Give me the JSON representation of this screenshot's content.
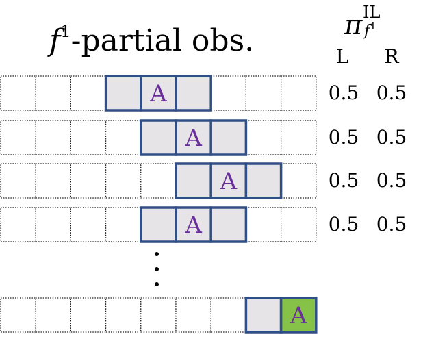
{
  "title": {
    "prefix": "f",
    "superscript": "1",
    "suffix": "-partial obs."
  },
  "policy_header": {
    "symbol": "π",
    "superscript": "IL",
    "subscript": "f",
    "subscript_superscript": "1",
    "columns": [
      "L",
      "R"
    ]
  },
  "grid": {
    "num_cells": 9,
    "agent_label": "A",
    "rows": [
      {
        "agent_cell": 4,
        "observed_cells": [
          3,
          4,
          5
        ],
        "probs": [
          "0.5",
          "0.5"
        ],
        "goal": false
      },
      {
        "agent_cell": 5,
        "observed_cells": [
          4,
          5,
          6
        ],
        "probs": [
          "0.5",
          "0.5"
        ],
        "goal": false
      },
      {
        "agent_cell": 6,
        "observed_cells": [
          5,
          6,
          7
        ],
        "probs": [
          "0.5",
          "0.5"
        ],
        "goal": false
      },
      {
        "agent_cell": 5,
        "observed_cells": [
          4,
          5,
          6
        ],
        "probs": [
          "0.5",
          "0.5"
        ],
        "goal": false
      },
      {
        "agent_cell": 8,
        "observed_cells": [
          7,
          8
        ],
        "probs": [],
        "goal": true
      }
    ]
  },
  "ellipsis": "⋮",
  "colors": {
    "observed_fill": "#e6e4e6",
    "observed_border": "#2f4f86",
    "agent_text": "#6a2f9a",
    "goal_fill": "#86c247",
    "empty_border": "#1a1a1a"
  }
}
